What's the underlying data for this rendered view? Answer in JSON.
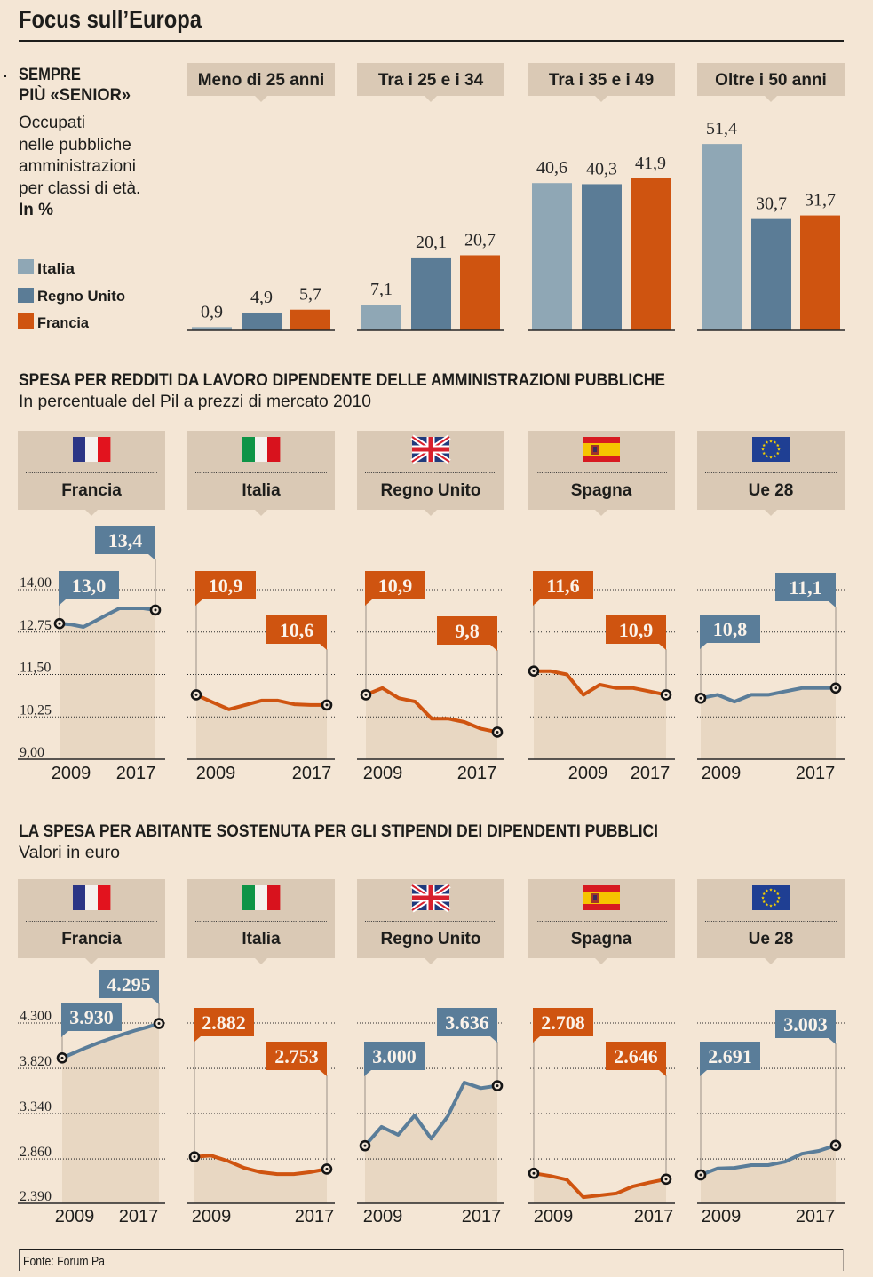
{
  "title": "Focus sull’Europa",
  "section1": {
    "heading_lines": [
      "SEMPRE",
      "PIÙ «SENIOR»"
    ],
    "description_lines": [
      "Occupati",
      "nelle pubbliche",
      "amministrazioni",
      "per classi di età."
    ],
    "unit": "In %",
    "legend": [
      {
        "label": "Italia",
        "color": "#8fa7b5"
      },
      {
        "label": "Regno Unito",
        "color": "#5b7c96"
      },
      {
        "label": "Francia",
        "color": "#cf5410"
      }
    ]
  },
  "section2": {
    "heading": "SPESA PER REDDITI DA LAVORO DIPENDENTE DELLE AMMINISTRAZIONI PUBBLICHE",
    "subtitle": "In percentuale del Pil a prezzi di mercato 2010"
  },
  "section3": {
    "heading": "LA SPESA PER ABITANTE SOSTENUTA PER GLI STIPENDI DEI DIPENDENTI PUBBLICI",
    "subtitle": "Valori in euro"
  },
  "source": "Fonte: Forum Pa",
  "colors": {
    "background": "#f4e6d5",
    "header_box": "#dac9b5",
    "area_fill": "#e8d7c2",
    "blue": "#5a7d99",
    "orange": "#cf5410",
    "marker": "#151515",
    "leader": "#9a9086"
  },
  "chart_data": [
    {
      "type": "bar",
      "title": "SEMPRE PIÙ «SENIOR»",
      "subtitle": "Occupati nelle pubbliche amministrazioni per classi di età. In %",
      "xlabel": "",
      "ylabel": "In %",
      "categories": [
        "Meno di 25 anni",
        "Tra i 25 e i 34",
        "Tra i 35 e i 49",
        "Oltre i 50 anni"
      ],
      "ylim": [
        0,
        60
      ],
      "grid": false,
      "legend": "left",
      "series": [
        {
          "name": "Italia",
          "color": "#8fa7b5",
          "values": [
            0.9,
            7.1,
            40.6,
            51.4
          ],
          "labels": [
            "0,9",
            "7,1",
            "40,6",
            "51,4"
          ]
        },
        {
          "name": "Regno Unito",
          "color": "#5b7c96",
          "values": [
            4.9,
            20.1,
            40.3,
            30.7
          ],
          "labels": [
            "4,9",
            "20,1",
            "40,3",
            "30,7"
          ]
        },
        {
          "name": "Francia",
          "color": "#cf5410",
          "values": [
            5.7,
            20.7,
            41.9,
            31.7
          ],
          "labels": [
            "5,7",
            "20,7",
            "41,9",
            "31,7"
          ]
        }
      ]
    },
    {
      "type": "area",
      "title": "SPESA PER REDDITI DA LAVORO DIPENDENTE DELLE AMMINISTRAZIONI PUBBLICHE",
      "subtitle": "In percentuale del Pil a prezzi di mercato 2010",
      "x": [
        2009,
        2010,
        2011,
        2012,
        2013,
        2014,
        2015,
        2016,
        2017
      ],
      "x_tick_labels": [
        "2009",
        "2017"
      ],
      "ylim": [
        9,
        14
      ],
      "y_ticks": [
        14,
        12.75,
        11.5,
        10.25,
        9
      ],
      "y_tick_labels": [
        "14,00",
        "12,75",
        "11,50",
        "10,25",
        "9,00"
      ],
      "grid": true,
      "panels": [
        {
          "country": "Francia",
          "flag": "france",
          "color": "#5a7d99",
          "values": [
            13.0,
            12.97,
            12.9,
            13.08,
            13.27,
            13.45,
            13.45,
            13.45,
            13.4
          ],
          "start_label": "13,0",
          "end_label": "13,4"
        },
        {
          "country": "Italia",
          "flag": "italy",
          "color": "#cf5410",
          "values": [
            10.9,
            10.68,
            10.47,
            10.6,
            10.73,
            10.73,
            10.62,
            10.6,
            10.6
          ],
          "start_label": "10,9",
          "end_label": "10,6"
        },
        {
          "country": "Regno Unito",
          "flag": "uk",
          "color": "#cf5410",
          "values": [
            10.9,
            11.1,
            10.8,
            10.7,
            10.2,
            10.2,
            10.1,
            9.9,
            9.8
          ],
          "start_label": "10,9",
          "end_label": "9,8"
        },
        {
          "country": "Spagna",
          "flag": "spain",
          "color": "#cf5410",
          "values": [
            11.6,
            11.6,
            11.5,
            10.9,
            11.2,
            11.1,
            11.1,
            11.0,
            10.9
          ],
          "start_label": "11,6",
          "end_label": "10,9"
        },
        {
          "country": "Ue 28",
          "flag": "eu",
          "color": "#5a7d99",
          "values": [
            10.8,
            10.9,
            10.7,
            10.9,
            10.9,
            11.0,
            11.1,
            11.1,
            11.1
          ],
          "start_label": "10,8",
          "end_label": "11,1"
        }
      ]
    },
    {
      "type": "area",
      "title": "LA SPESA PER ABITANTE SOSTENUTA PER GLI STIPENDI DEI DIPENDENTI PUBBLICI",
      "subtitle": "Valori in euro",
      "x": [
        2009,
        2010,
        2011,
        2012,
        2013,
        2014,
        2015,
        2016,
        2017
      ],
      "x_tick_labels": [
        "2009",
        "2017"
      ],
      "ylim": [
        2390,
        4300
      ],
      "y_ticks": [
        4300,
        3820,
        3340,
        2860,
        2390
      ],
      "y_tick_labels": [
        "4.300",
        "3.820",
        "3.340",
        "2.860",
        "2.390"
      ],
      "grid": true,
      "panels": [
        {
          "country": "Francia",
          "flag": "france",
          "color": "#5a7d99",
          "values": [
            3930,
            3985,
            4040,
            4090,
            4135,
            4180,
            4220,
            4255,
            4295
          ],
          "start_label": "3.930",
          "end_label": "4.295"
        },
        {
          "country": "Italia",
          "flag": "italy",
          "color": "#cf5410",
          "values": [
            2882,
            2895,
            2840,
            2765,
            2720,
            2700,
            2700,
            2720,
            2753
          ],
          "start_label": "2.882",
          "end_label": "2.753"
        },
        {
          "country": "Regno Unito",
          "flag": "uk",
          "color": "#5a7d99",
          "values": [
            3000,
            3200,
            3115,
            3320,
            3075,
            3310,
            3670,
            3610,
            3636
          ],
          "start_label": "3.000",
          "end_label": "3.636"
        },
        {
          "country": "Spagna",
          "flag": "spain",
          "color": "#cf5410",
          "values": [
            2708,
            2680,
            2640,
            2455,
            2475,
            2495,
            2570,
            2610,
            2646
          ],
          "start_label": "2.708",
          "end_label": "2.646"
        },
        {
          "country": "Ue 28",
          "flag": "eu",
          "color": "#5a7d99",
          "values": [
            2691,
            2760,
            2765,
            2795,
            2795,
            2830,
            2915,
            2945,
            3003
          ],
          "start_label": "2.691",
          "end_label": "3.003"
        }
      ]
    }
  ]
}
